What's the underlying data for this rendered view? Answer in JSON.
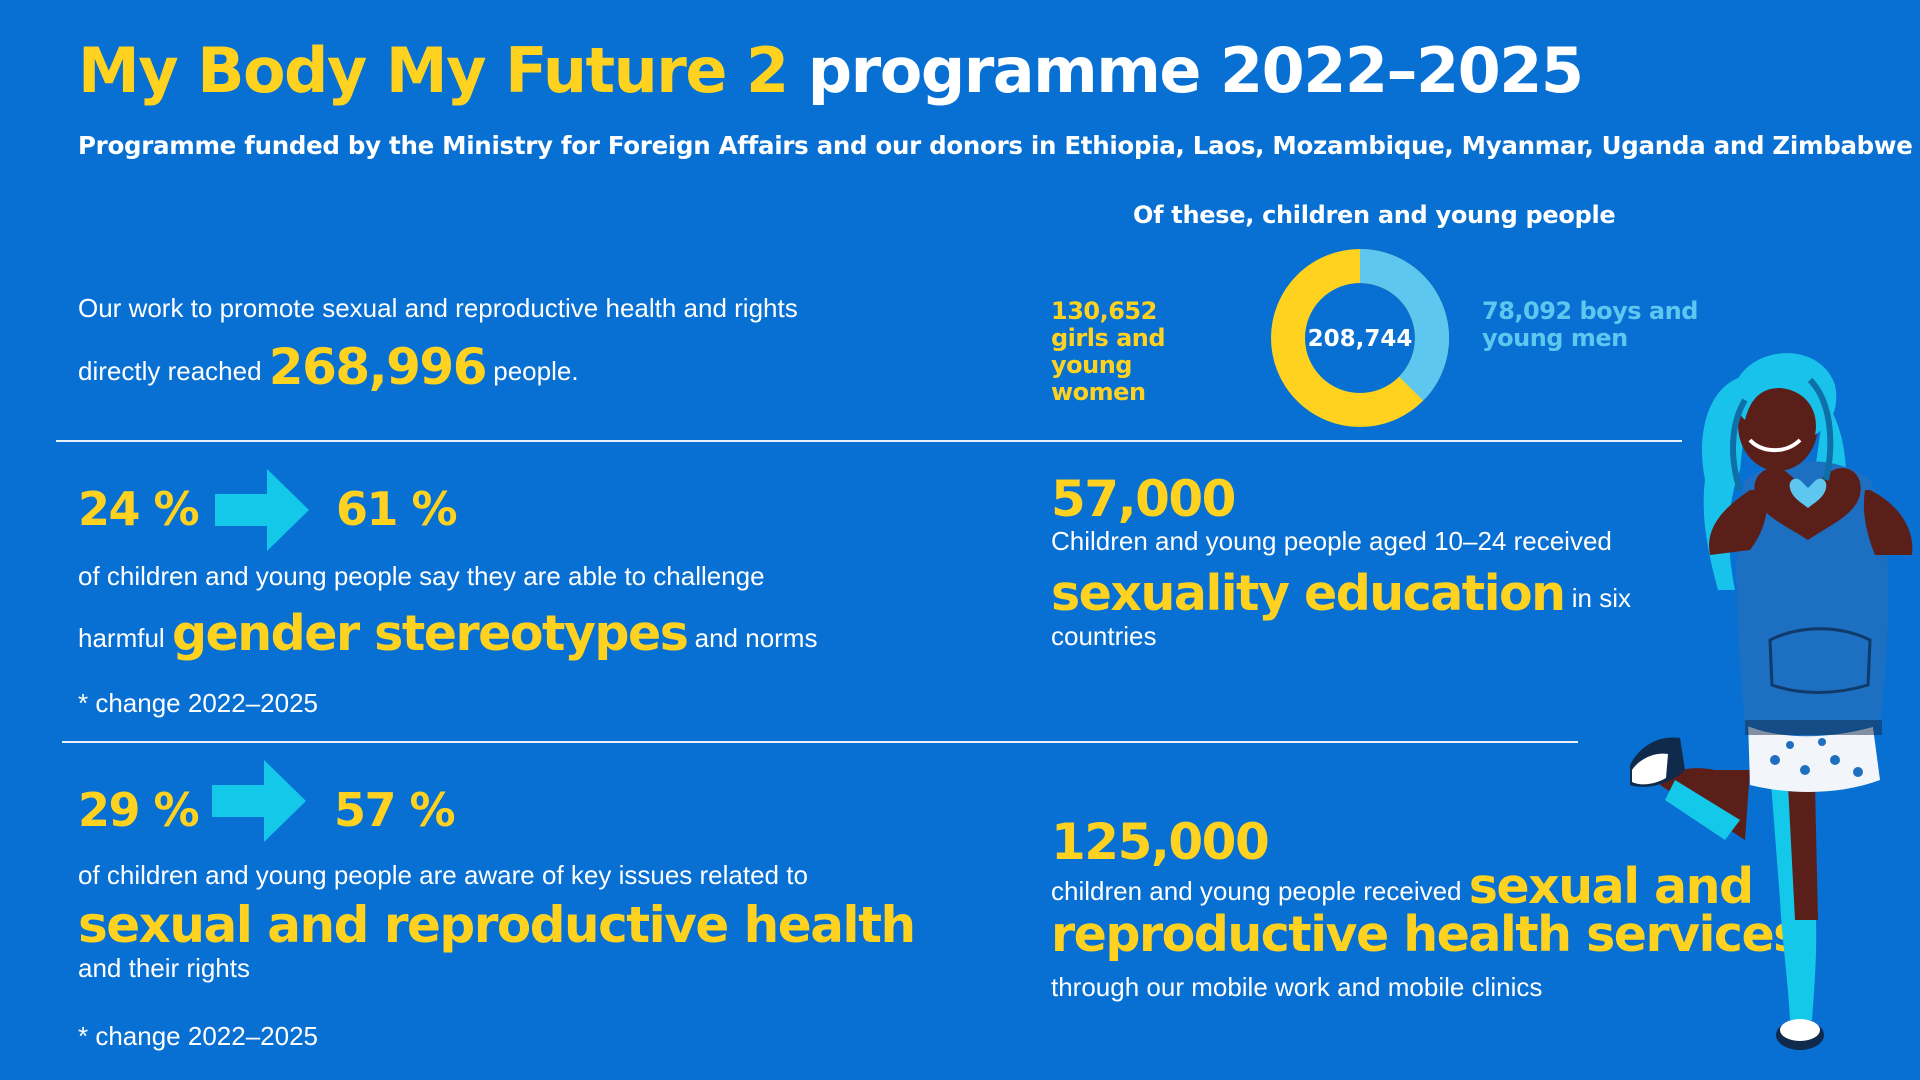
{
  "header": {
    "title_highlight": "My Body My Future 2",
    "title_rest": "programme 2022–2025",
    "subtitle": "Programme funded by the Ministry for Foreign Affairs and our donors in Ethiopia, Laos, Mozambique, Myanmar, Uganda and Zimbabwe"
  },
  "reach": {
    "line1": "Our work to promote sexual and reproductive health and rights",
    "prefix": "directly reached",
    "number": "268,996",
    "suffix": "people."
  },
  "donut": {
    "title": "Of these, children and young people",
    "total": "208,744",
    "girls_label": "130,652 girls and young women",
    "boys_label": "78,092 boys and young men",
    "girls_value": 130652,
    "boys_value": 78092,
    "girls_color": "#ffd21f",
    "boys_color": "#5ec7ef"
  },
  "stereotypes": {
    "from": "24 %",
    "to": "61 %",
    "line1": "of children and young people say they are able to challenge",
    "prefix": "harmful",
    "highlight": "gender stereotypes",
    "suffix": "and norms",
    "note": "* change 2022–2025"
  },
  "education": {
    "number": "57,000",
    "line1": "Children and young people aged 10–24 received",
    "highlight": "sexuality education",
    "suffix": "in six",
    "line3": "countries"
  },
  "awareness": {
    "from": "29 %",
    "to": "57 %",
    "line1": "of children and young people are aware of key issues related to",
    "highlight": "sexual and reproductive health",
    "line3": "and their rights",
    "note": "* change 2022–2025"
  },
  "services": {
    "number": "125,000",
    "prefix": "children and young people received",
    "highlight1": "sexual and",
    "highlight2": "reproductive health services",
    "line3": "through our mobile work and mobile clinics"
  },
  "icons": {
    "arrow": "right-arrow-icon",
    "illustration": "girl-heart-hands-illustration"
  },
  "colors": {
    "background": "#0770d2",
    "accent_yellow": "#ffd21f",
    "arrow_cyan": "#14c8ea"
  }
}
